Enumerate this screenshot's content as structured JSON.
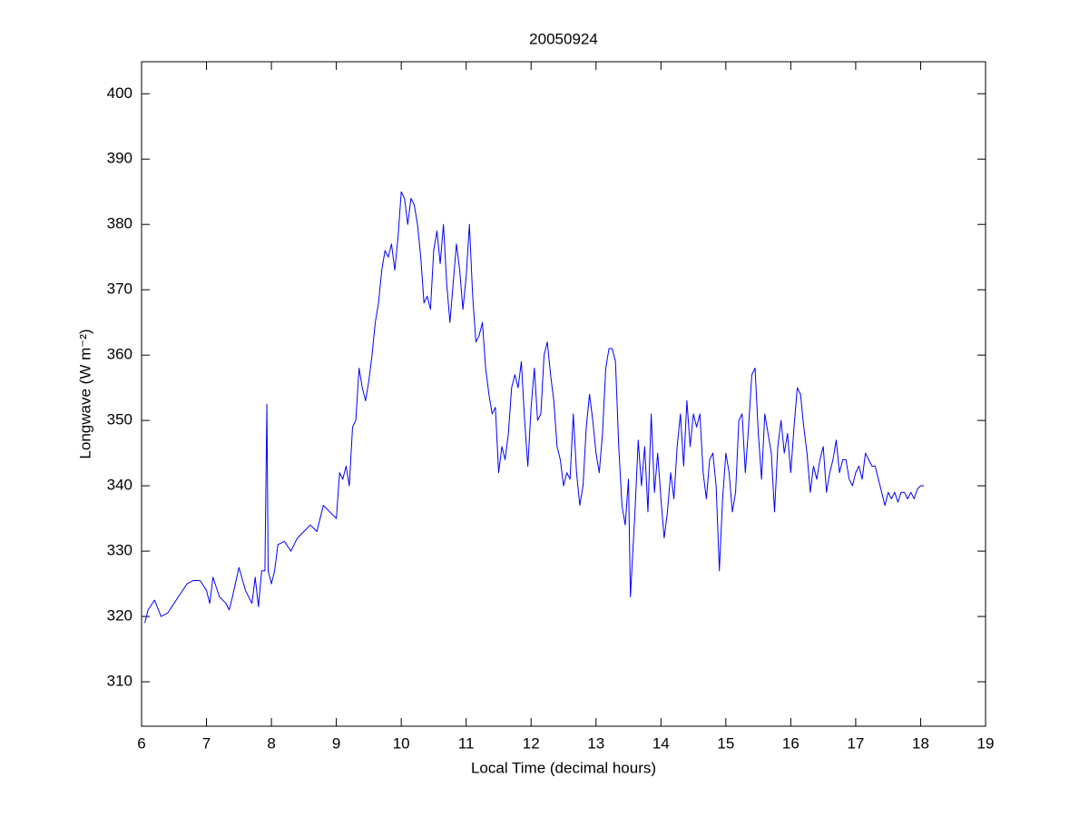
{
  "chart_data": {
    "type": "line",
    "title": "20050924",
    "xlabel": "Local Time (decimal hours)",
    "ylabel": "Longwave (W m⁻²)",
    "xlim": [
      6,
      19
    ],
    "xticks": [
      6,
      7,
      8,
      9,
      10,
      11,
      12,
      13,
      14,
      15,
      16,
      17,
      18,
      19
    ],
    "ylim": [
      303.2,
      404.9
    ],
    "yticks": [
      310,
      320,
      330,
      340,
      350,
      360,
      370,
      380,
      390,
      400
    ],
    "grid": false,
    "x": [
      6.05,
      6.1,
      6.2,
      6.3,
      6.4,
      6.5,
      6.6,
      6.7,
      6.8,
      6.9,
      7,
      7.05,
      7.1,
      7.2,
      7.3,
      7.35,
      7.4,
      7.5,
      7.6,
      7.7,
      7.75,
      7.8,
      7.85,
      7.9,
      7.93,
      7.95,
      8,
      8.05,
      8.1,
      8.2,
      8.3,
      8.4,
      8.5,
      8.6,
      8.7,
      8.8,
      8.9,
      9,
      9.05,
      9.1,
      9.15,
      9.2,
      9.25,
      9.3,
      9.35,
      9.4,
      9.45,
      9.5,
      9.55,
      9.6,
      9.65,
      9.7,
      9.75,
      9.8,
      9.85,
      9.9,
      9.95,
      10,
      10.05,
      10.1,
      10.15,
      10.2,
      10.25,
      10.3,
      10.35,
      10.4,
      10.45,
      10.5,
      10.55,
      10.6,
      10.65,
      10.7,
      10.75,
      10.8,
      10.85,
      10.9,
      10.95,
      11,
      11.05,
      11.1,
      11.15,
      11.2,
      11.25,
      11.3,
      11.35,
      11.4,
      11.45,
      11.5,
      11.55,
      11.6,
      11.65,
      11.7,
      11.75,
      11.8,
      11.85,
      11.9,
      11.95,
      12,
      12.05,
      12.1,
      12.15,
      12.2,
      12.25,
      12.3,
      12.35,
      12.4,
      12.45,
      12.5,
      12.55,
      12.6,
      12.65,
      12.7,
      12.75,
      12.8,
      12.85,
      12.9,
      12.95,
      13,
      13.05,
      13.1,
      13.15,
      13.2,
      13.25,
      13.3,
      13.35,
      13.4,
      13.45,
      13.5,
      13.53,
      13.6,
      13.65,
      13.7,
      13.75,
      13.8,
      13.85,
      13.9,
      13.95,
      14,
      14.05,
      14.1,
      14.15,
      14.2,
      14.25,
      14.3,
      14.35,
      14.4,
      14.45,
      14.5,
      14.55,
      14.6,
      14.65,
      14.7,
      14.75,
      14.8,
      14.85,
      14.9,
      14.95,
      15,
      15.05,
      15.1,
      15.15,
      15.2,
      15.25,
      15.3,
      15.35,
      15.4,
      15.45,
      15.5,
      15.55,
      15.6,
      15.65,
      15.7,
      15.75,
      15.8,
      15.85,
      15.9,
      15.95,
      16,
      16.05,
      16.1,
      16.15,
      16.2,
      16.25,
      16.3,
      16.35,
      16.4,
      16.45,
      16.5,
      16.55,
      16.6,
      16.65,
      16.7,
      16.75,
      16.8,
      16.85,
      16.9,
      16.95,
      17,
      17.05,
      17.1,
      17.15,
      17.2,
      17.25,
      17.3,
      17.35,
      17.4,
      17.45,
      17.5,
      17.55,
      17.6,
      17.65,
      17.7,
      17.75,
      17.8,
      17.85,
      17.9,
      17.95,
      18,
      18.05
    ],
    "series": [
      {
        "color": "#0000ff",
        "values": [
          319,
          321,
          322.5,
          320,
          320.5,
          322,
          323.5,
          325,
          325.5,
          325.5,
          324,
          322,
          326,
          323,
          322,
          321,
          323,
          327.5,
          324,
          322,
          326,
          321.5,
          327,
          327,
          352.5,
          327,
          325,
          327,
          331,
          331.5,
          330,
          332,
          333,
          334,
          333,
          337,
          336,
          335,
          342,
          341,
          343,
          340,
          349,
          350,
          358,
          355,
          353,
          356,
          360,
          365,
          368,
          373,
          376,
          375,
          377,
          373,
          378,
          385,
          384,
          380,
          384,
          383,
          380,
          375,
          368,
          369,
          367,
          376,
          379,
          374,
          380,
          371,
          365,
          371,
          377,
          373,
          367,
          372,
          380,
          369,
          362,
          363,
          365,
          358,
          354,
          351,
          352,
          342,
          346,
          344,
          348,
          355,
          357,
          355,
          359,
          350,
          343,
          352,
          358,
          350,
          351,
          360,
          362,
          357,
          353,
          346,
          344,
          340,
          342,
          341,
          351,
          342,
          337,
          340,
          349,
          354,
          350,
          345,
          342,
          348,
          358,
          361,
          361,
          359,
          346,
          337,
          334,
          341,
          323,
          336,
          347,
          340,
          346,
          336,
          351,
          339,
          345,
          338,
          332,
          336,
          342,
          338,
          346,
          351,
          343,
          353,
          346,
          351,
          349,
          351,
          342,
          338,
          344,
          345,
          340,
          327,
          338,
          345,
          342,
          336,
          339,
          350,
          351,
          342,
          349,
          357,
          358,
          348,
          341,
          351,
          348,
          345,
          336,
          346,
          350,
          345,
          348,
          342,
          349,
          355,
          354,
          349,
          345,
          339,
          343,
          341,
          344,
          346,
          339,
          342,
          344,
          347,
          342,
          344,
          344,
          341,
          340,
          342,
          343,
          341,
          345,
          344,
          343,
          343,
          341,
          339,
          337,
          339,
          338,
          339,
          337.5,
          339,
          339,
          338,
          339,
          338,
          339.5,
          340,
          340
        ]
      }
    ]
  }
}
